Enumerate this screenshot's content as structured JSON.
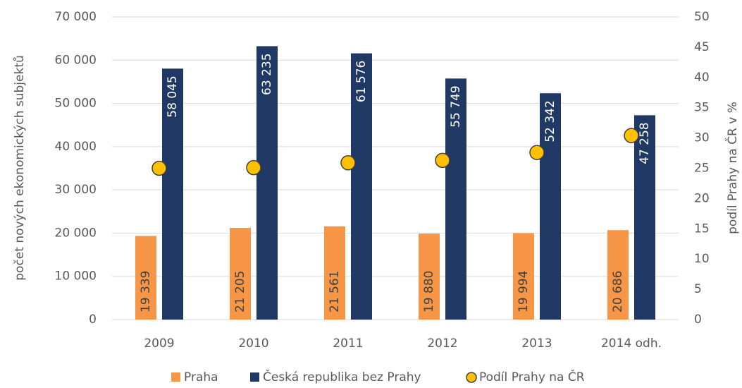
{
  "chart_data": {
    "type": "bar",
    "categories": [
      "2009",
      "2010",
      "2011",
      "2012",
      "2013",
      "2014 odh."
    ],
    "series": [
      {
        "name": "Praha",
        "color": "#f79646",
        "values": [
          19339,
          21205,
          21561,
          19880,
          19994,
          20686
        ],
        "value_labels": [
          "19 339",
          "21 205",
          "21 561",
          "19 880",
          "19 994",
          "20 686"
        ]
      },
      {
        "name": "Česká republika bez Prahy",
        "color": "#1f3864",
        "values": [
          58045,
          63235,
          61576,
          55749,
          52342,
          47258
        ],
        "value_labels": [
          "58 045",
          "63 235",
          "61 576",
          "55 749",
          "52 342",
          "47 258"
        ]
      },
      {
        "name": "Podíl Prahy na ČR",
        "type": "scatter",
        "axis": "y2",
        "color": "#ffc000",
        "values": [
          25.0,
          25.1,
          25.9,
          26.3,
          27.6,
          30.4
        ]
      }
    ],
    "ylabel": "počet nových ekonomických subjektů",
    "y2label": "podíl Prahy na ČR v %",
    "ylim": [
      0,
      70000
    ],
    "yticks": [
      {
        "value": 0,
        "label": "0"
      },
      {
        "value": 10000,
        "label": "10 000"
      },
      {
        "value": 20000,
        "label": "20 000"
      },
      {
        "value": 30000,
        "label": "30 000"
      },
      {
        "value": 40000,
        "label": "40 000"
      },
      {
        "value": 50000,
        "label": "50 000"
      },
      {
        "value": 60000,
        "label": "60 000"
      },
      {
        "value": 70000,
        "label": "70 000"
      }
    ],
    "y2lim": [
      0,
      50
    ],
    "y2ticks": [
      0,
      5,
      10,
      15,
      20,
      25,
      30,
      35,
      40,
      45,
      50
    ],
    "grid": true,
    "legend": "bottom"
  }
}
